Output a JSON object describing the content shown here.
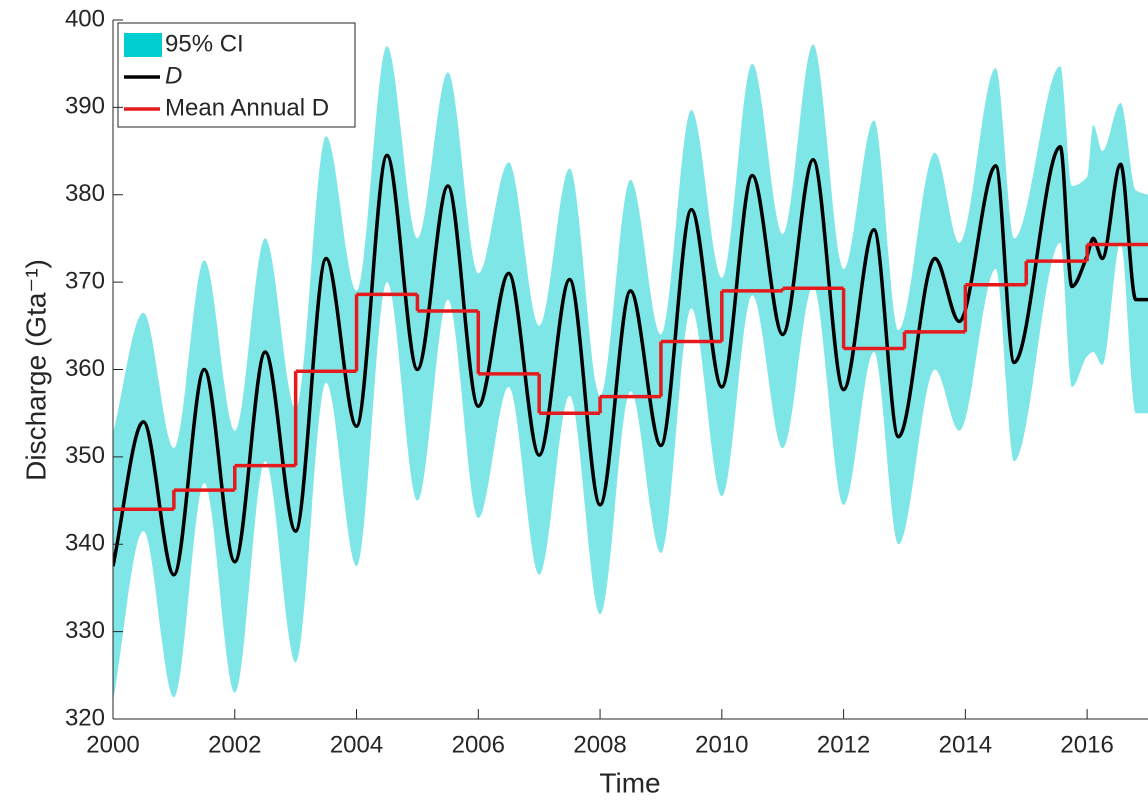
{
  "chart_data": {
    "type": "line",
    "xlabel": "Time",
    "ylabel": "Discharge (Gta⁻¹)",
    "xlim": [
      2000,
      2017
    ],
    "xticks": [
      2000,
      2002,
      2004,
      2006,
      2008,
      2010,
      2012,
      2014,
      2016
    ],
    "ylim": [
      320,
      400
    ],
    "yticks": [
      320,
      330,
      340,
      350,
      360,
      370,
      380,
      390,
      400
    ],
    "legend": "upper-left",
    "series": [
      {
        "name": "95% CI",
        "color": "#00ced1",
        "kind": "band",
        "x": [
          2000,
          2000.5,
          2001,
          2001.5,
          2002,
          2002.5,
          2003,
          2003.5,
          2004,
          2004.5,
          2005,
          2005.5,
          2006,
          2006.5,
          2007,
          2007.5,
          2008,
          2008.5,
          2009,
          2009.5,
          2010,
          2010.5,
          2011,
          2011.5,
          2012,
          2012.5,
          2012.9,
          2013.5,
          2013.9,
          2014.5,
          2014.8,
          2015.56,
          2015.75,
          2016,
          2016.1,
          2016.25,
          2016.55,
          2016.8,
          2017
        ],
        "upper": [
          352.7,
          366.5,
          351,
          372.5,
          353,
          375,
          355.5,
          386.7,
          369,
          397,
          375,
          394,
          371,
          383.7,
          365,
          383,
          357,
          381.7,
          364,
          389.7,
          370.5,
          395,
          375.5,
          397.2,
          371.5,
          388.5,
          364.5,
          384.8,
          374.5,
          394.5,
          375,
          394.7,
          381,
          382,
          388,
          385,
          390.5,
          380.5,
          380
        ],
        "lower": [
          322,
          341.5,
          322.5,
          347,
          323,
          349.5,
          326.5,
          358.5,
          337.5,
          370,
          345,
          368,
          343,
          358,
          336.5,
          357,
          332,
          357.5,
          339,
          367,
          345.5,
          368.5,
          351,
          369.5,
          344.5,
          362,
          340,
          360,
          353,
          371.5,
          349.5,
          374.5,
          358,
          361.5,
          362,
          360.5,
          374.5,
          355,
          355
        ]
      },
      {
        "name": "D",
        "color": "#000000",
        "kind": "line",
        "x": [
          2000,
          2000.5,
          2001,
          2001.5,
          2002,
          2002.5,
          2003,
          2003.5,
          2004,
          2004.5,
          2005,
          2005.5,
          2006,
          2006.5,
          2007,
          2007.5,
          2008,
          2008.5,
          2009,
          2009.5,
          2010,
          2010.5,
          2011,
          2011.5,
          2012,
          2012.5,
          2012.9,
          2013.5,
          2013.9,
          2014.5,
          2014.8,
          2015.56,
          2015.75,
          2016,
          2016.1,
          2016.25,
          2016.55,
          2016.8,
          2017
        ],
        "values": [
          337.5,
          354,
          336.5,
          360,
          338,
          362,
          341.5,
          372.7,
          353.5,
          384.5,
          360,
          381,
          355.8,
          371,
          350.2,
          370.3,
          344.5,
          369,
          351.3,
          378.3,
          358,
          382.2,
          364,
          384,
          357.7,
          376,
          352.3,
          372.7,
          365.5,
          383.3,
          360.8,
          385.5,
          369.5,
          373,
          375,
          372.7,
          383.5,
          368,
          368
        ]
      },
      {
        "name": "Mean Annual D",
        "color": "#e41a1c",
        "kind": "step",
        "x": [
          2000,
          2001,
          2002,
          2003,
          2004,
          2005,
          2006,
          2007,
          2008,
          2009,
          2010,
          2011,
          2012,
          2013,
          2014,
          2015,
          2016
        ],
        "values": [
          344,
          346.2,
          349,
          359.8,
          368.6,
          366.7,
          359.5,
          355,
          356.9,
          363.2,
          369,
          369.3,
          362.4,
          364.3,
          369.7,
          372.4,
          374.3
        ]
      }
    ]
  }
}
